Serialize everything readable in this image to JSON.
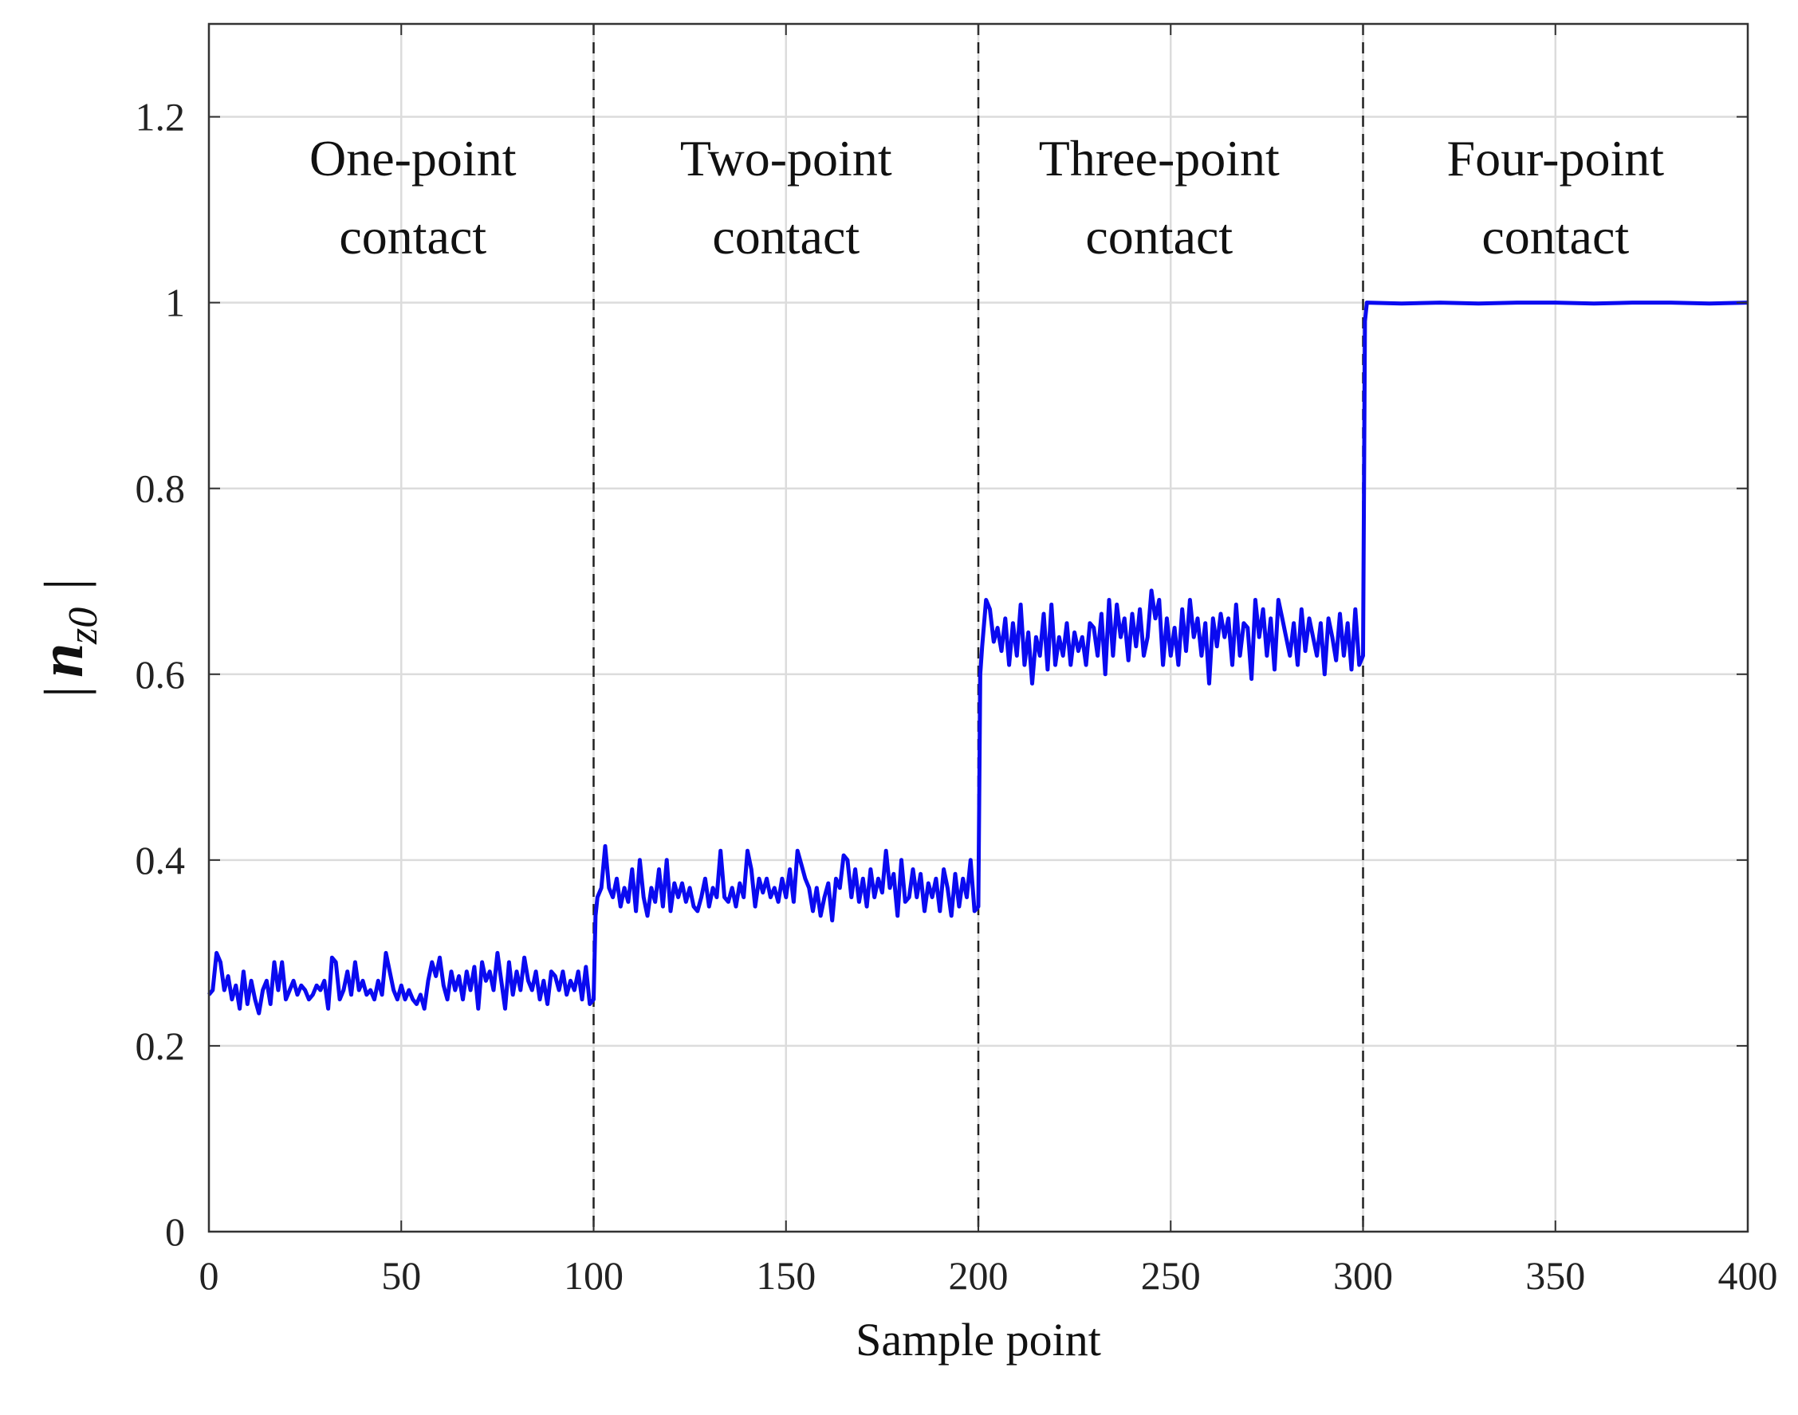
{
  "chart_data": {
    "type": "line",
    "xlabel": "Sample point",
    "ylabel": {
      "bars": "|",
      "base": "n",
      "subscript": "z0"
    },
    "xlim": [
      0,
      400
    ],
    "ylim": [
      0,
      1.3
    ],
    "xticks": [
      "0",
      "50",
      "100",
      "150",
      "200",
      "250",
      "300",
      "350",
      "400"
    ],
    "yticks": [
      "0",
      "0.2",
      "0.4",
      "0.6",
      "0.8",
      "1",
      "1.2"
    ],
    "grid": true,
    "line_color": "#0a0af0",
    "divider_x": [
      100,
      200,
      300
    ],
    "regions": [
      {
        "line1": "One-point",
        "line2": "contact",
        "x_center": 53
      },
      {
        "line1": "Two-point",
        "line2": "contact",
        "x_center": 150
      },
      {
        "line1": "Three-point",
        "line2": "contact",
        "x_center": 247
      },
      {
        "line1": "Four-point",
        "line2": "contact",
        "x_center": 350
      }
    ],
    "series": [
      {
        "points": [
          [
            0,
            0.255
          ],
          [
            1,
            0.26
          ],
          [
            2,
            0.3
          ],
          [
            3,
            0.29
          ],
          [
            4,
            0.26
          ],
          [
            5,
            0.275
          ],
          [
            6,
            0.25
          ],
          [
            7,
            0.265
          ],
          [
            8,
            0.24
          ],
          [
            9,
            0.28
          ],
          [
            10,
            0.245
          ],
          [
            11,
            0.27
          ],
          [
            12,
            0.25
          ],
          [
            13,
            0.235
          ],
          [
            14,
            0.26
          ],
          [
            15,
            0.27
          ],
          [
            16,
            0.245
          ],
          [
            17,
            0.29
          ],
          [
            18,
            0.26
          ],
          [
            19,
            0.29
          ],
          [
            20,
            0.25
          ],
          [
            21,
            0.26
          ],
          [
            22,
            0.27
          ],
          [
            23,
            0.255
          ],
          [
            24,
            0.265
          ],
          [
            25,
            0.26
          ],
          [
            26,
            0.25
          ],
          [
            27,
            0.255
          ],
          [
            28,
            0.265
          ],
          [
            29,
            0.26
          ],
          [
            30,
            0.27
          ],
          [
            31,
            0.24
          ],
          [
            32,
            0.295
          ],
          [
            33,
            0.29
          ],
          [
            34,
            0.25
          ],
          [
            35,
            0.26
          ],
          [
            36,
            0.28
          ],
          [
            37,
            0.255
          ],
          [
            38,
            0.29
          ],
          [
            39,
            0.26
          ],
          [
            40,
            0.27
          ],
          [
            41,
            0.255
          ],
          [
            42,
            0.26
          ],
          [
            43,
            0.25
          ],
          [
            44,
            0.27
          ],
          [
            45,
            0.255
          ],
          [
            46,
            0.3
          ],
          [
            47,
            0.28
          ],
          [
            48,
            0.26
          ],
          [
            49,
            0.25
          ],
          [
            50,
            0.265
          ],
          [
            51,
            0.25
          ],
          [
            52,
            0.26
          ],
          [
            53,
            0.25
          ],
          [
            54,
            0.245
          ],
          [
            55,
            0.255
          ],
          [
            56,
            0.24
          ],
          [
            57,
            0.27
          ],
          [
            58,
            0.29
          ],
          [
            59,
            0.275
          ],
          [
            60,
            0.295
          ],
          [
            61,
            0.265
          ],
          [
            62,
            0.25
          ],
          [
            63,
            0.28
          ],
          [
            64,
            0.26
          ],
          [
            65,
            0.275
          ],
          [
            66,
            0.25
          ],
          [
            67,
            0.28
          ],
          [
            68,
            0.26
          ],
          [
            69,
            0.285
          ],
          [
            70,
            0.24
          ],
          [
            71,
            0.29
          ],
          [
            72,
            0.27
          ],
          [
            73,
            0.28
          ],
          [
            74,
            0.26
          ],
          [
            75,
            0.3
          ],
          [
            76,
            0.27
          ],
          [
            77,
            0.24
          ],
          [
            78,
            0.29
          ],
          [
            79,
            0.255
          ],
          [
            80,
            0.28
          ],
          [
            81,
            0.26
          ],
          [
            82,
            0.295
          ],
          [
            83,
            0.27
          ],
          [
            84,
            0.26
          ],
          [
            85,
            0.28
          ],
          [
            86,
            0.25
          ],
          [
            87,
            0.27
          ],
          [
            88,
            0.245
          ],
          [
            89,
            0.28
          ],
          [
            90,
            0.275
          ],
          [
            91,
            0.26
          ],
          [
            92,
            0.28
          ],
          [
            93,
            0.255
          ],
          [
            94,
            0.27
          ],
          [
            95,
            0.26
          ],
          [
            96,
            0.28
          ],
          [
            97,
            0.25
          ],
          [
            98,
            0.285
          ],
          [
            99,
            0.245
          ],
          [
            100,
            0.25
          ],
          [
            100.5,
            0.34
          ],
          [
            101,
            0.36
          ],
          [
            102,
            0.37
          ],
          [
            103,
            0.415
          ],
          [
            104,
            0.37
          ],
          [
            105,
            0.36
          ],
          [
            106,
            0.38
          ],
          [
            107,
            0.35
          ],
          [
            108,
            0.37
          ],
          [
            109,
            0.355
          ],
          [
            110,
            0.39
          ],
          [
            111,
            0.345
          ],
          [
            112,
            0.4
          ],
          [
            113,
            0.36
          ],
          [
            114,
            0.34
          ],
          [
            115,
            0.37
          ],
          [
            116,
            0.355
          ],
          [
            117,
            0.39
          ],
          [
            118,
            0.35
          ],
          [
            119,
            0.4
          ],
          [
            120,
            0.345
          ],
          [
            121,
            0.375
          ],
          [
            122,
            0.36
          ],
          [
            123,
            0.375
          ],
          [
            124,
            0.355
          ],
          [
            125,
            0.37
          ],
          [
            126,
            0.35
          ],
          [
            127,
            0.345
          ],
          [
            128,
            0.36
          ],
          [
            129,
            0.38
          ],
          [
            130,
            0.35
          ],
          [
            131,
            0.37
          ],
          [
            132,
            0.36
          ],
          [
            133,
            0.41
          ],
          [
            134,
            0.36
          ],
          [
            135,
            0.355
          ],
          [
            136,
            0.37
          ],
          [
            137,
            0.35
          ],
          [
            138,
            0.375
          ],
          [
            139,
            0.36
          ],
          [
            140,
            0.41
          ],
          [
            141,
            0.39
          ],
          [
            142,
            0.35
          ],
          [
            143,
            0.38
          ],
          [
            144,
            0.365
          ],
          [
            145,
            0.38
          ],
          [
            146,
            0.36
          ],
          [
            147,
            0.37
          ],
          [
            148,
            0.355
          ],
          [
            149,
            0.38
          ],
          [
            150,
            0.36
          ],
          [
            151,
            0.39
          ],
          [
            152,
            0.355
          ],
          [
            153,
            0.41
          ],
          [
            154,
            0.395
          ],
          [
            155,
            0.38
          ],
          [
            156,
            0.37
          ],
          [
            157,
            0.345
          ],
          [
            158,
            0.37
          ],
          [
            159,
            0.34
          ],
          [
            160,
            0.36
          ],
          [
            161,
            0.375
          ],
          [
            162,
            0.335
          ],
          [
            163,
            0.38
          ],
          [
            164,
            0.37
          ],
          [
            165,
            0.405
          ],
          [
            166,
            0.4
          ],
          [
            167,
            0.36
          ],
          [
            168,
            0.39
          ],
          [
            169,
            0.355
          ],
          [
            170,
            0.38
          ],
          [
            171,
            0.35
          ],
          [
            172,
            0.39
          ],
          [
            173,
            0.36
          ],
          [
            174,
            0.38
          ],
          [
            175,
            0.365
          ],
          [
            176,
            0.41
          ],
          [
            177,
            0.37
          ],
          [
            178,
            0.385
          ],
          [
            179,
            0.34
          ],
          [
            180,
            0.4
          ],
          [
            181,
            0.355
          ],
          [
            182,
            0.36
          ],
          [
            183,
            0.39
          ],
          [
            184,
            0.36
          ],
          [
            185,
            0.385
          ],
          [
            186,
            0.345
          ],
          [
            187,
            0.375
          ],
          [
            188,
            0.36
          ],
          [
            189,
            0.38
          ],
          [
            190,
            0.345
          ],
          [
            191,
            0.39
          ],
          [
            192,
            0.37
          ],
          [
            193,
            0.34
          ],
          [
            194,
            0.385
          ],
          [
            195,
            0.35
          ],
          [
            196,
            0.38
          ],
          [
            197,
            0.36
          ],
          [
            198,
            0.4
          ],
          [
            199,
            0.345
          ],
          [
            200,
            0.35
          ],
          [
            200.5,
            0.6
          ],
          [
            201,
            0.63
          ],
          [
            202,
            0.68
          ],
          [
            203,
            0.67
          ],
          [
            204,
            0.635
          ],
          [
            205,
            0.65
          ],
          [
            206,
            0.625
          ],
          [
            207,
            0.66
          ],
          [
            208,
            0.61
          ],
          [
            209,
            0.655
          ],
          [
            210,
            0.62
          ],
          [
            211,
            0.675
          ],
          [
            212,
            0.61
          ],
          [
            213,
            0.645
          ],
          [
            214,
            0.59
          ],
          [
            215,
            0.64
          ],
          [
            216,
            0.62
          ],
          [
            217,
            0.665
          ],
          [
            218,
            0.605
          ],
          [
            219,
            0.675
          ],
          [
            220,
            0.61
          ],
          [
            221,
            0.64
          ],
          [
            222,
            0.62
          ],
          [
            223,
            0.655
          ],
          [
            224,
            0.61
          ],
          [
            225,
            0.645
          ],
          [
            226,
            0.625
          ],
          [
            227,
            0.64
          ],
          [
            228,
            0.61
          ],
          [
            229,
            0.655
          ],
          [
            230,
            0.65
          ],
          [
            231,
            0.62
          ],
          [
            232,
            0.665
          ],
          [
            233,
            0.6
          ],
          [
            234,
            0.68
          ],
          [
            235,
            0.62
          ],
          [
            236,
            0.675
          ],
          [
            237,
            0.64
          ],
          [
            238,
            0.66
          ],
          [
            239,
            0.615
          ],
          [
            240,
            0.665
          ],
          [
            241,
            0.63
          ],
          [
            242,
            0.67
          ],
          [
            243,
            0.62
          ],
          [
            244,
            0.64
          ],
          [
            245,
            0.69
          ],
          [
            246,
            0.66
          ],
          [
            247,
            0.68
          ],
          [
            248,
            0.61
          ],
          [
            249,
            0.66
          ],
          [
            250,
            0.62
          ],
          [
            251,
            0.65
          ],
          [
            252,
            0.61
          ],
          [
            253,
            0.67
          ],
          [
            254,
            0.625
          ],
          [
            255,
            0.68
          ],
          [
            256,
            0.64
          ],
          [
            257,
            0.66
          ],
          [
            258,
            0.62
          ],
          [
            259,
            0.655
          ],
          [
            260,
            0.59
          ],
          [
            261,
            0.66
          ],
          [
            262,
            0.63
          ],
          [
            263,
            0.665
          ],
          [
            264,
            0.64
          ],
          [
            265,
            0.66
          ],
          [
            266,
            0.61
          ],
          [
            267,
            0.675
          ],
          [
            268,
            0.62
          ],
          [
            269,
            0.655
          ],
          [
            270,
            0.65
          ],
          [
            271,
            0.595
          ],
          [
            272,
            0.68
          ],
          [
            273,
            0.64
          ],
          [
            274,
            0.67
          ],
          [
            275,
            0.62
          ],
          [
            276,
            0.66
          ],
          [
            277,
            0.605
          ],
          [
            278,
            0.68
          ],
          [
            279,
            0.66
          ],
          [
            280,
            0.64
          ],
          [
            281,
            0.62
          ],
          [
            282,
            0.655
          ],
          [
            283,
            0.61
          ],
          [
            284,
            0.67
          ],
          [
            285,
            0.625
          ],
          [
            286,
            0.66
          ],
          [
            287,
            0.64
          ],
          [
            288,
            0.62
          ],
          [
            289,
            0.655
          ],
          [
            290,
            0.6
          ],
          [
            291,
            0.66
          ],
          [
            292,
            0.64
          ],
          [
            293,
            0.615
          ],
          [
            294,
            0.665
          ],
          [
            295,
            0.62
          ],
          [
            296,
            0.655
          ],
          [
            297,
            0.605
          ],
          [
            298,
            0.67
          ],
          [
            299,
            0.61
          ],
          [
            300,
            0.62
          ],
          [
            300.5,
            0.98
          ],
          [
            301,
            1.0
          ],
          [
            310,
            0.999
          ],
          [
            320,
            1.0
          ],
          [
            330,
            0.999
          ],
          [
            340,
            1.0
          ],
          [
            350,
            1.0
          ],
          [
            360,
            0.999
          ],
          [
            370,
            1.0
          ],
          [
            380,
            1.0
          ],
          [
            390,
            0.999
          ],
          [
            400,
            1.0
          ]
        ]
      }
    ]
  }
}
